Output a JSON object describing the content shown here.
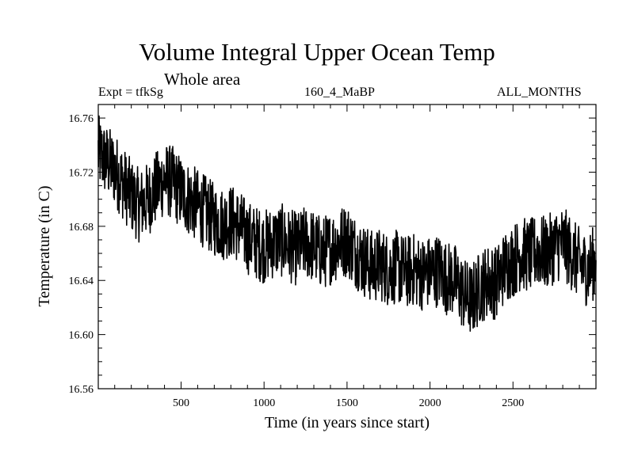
{
  "header": {
    "title": "Volume Integral Upper Ocean Temp",
    "subtitle": "Whole area",
    "expt": "Expt = tfkSg",
    "run": "160_4_MaBP",
    "months": "ALL_MONTHS"
  },
  "chart_data": {
    "type": "line",
    "title": "Volume Integral Upper Ocean Temp",
    "xlabel": "Time (in years since start)",
    "ylabel": "Temperature (in C)",
    "xlim": [
      1,
      3000
    ],
    "ylim": [
      16.56,
      16.77
    ],
    "xticks": [
      500,
      1000,
      1500,
      2000,
      2500
    ],
    "xtick_labels": [
      "500",
      "1000",
      "1500",
      "2000",
      "2500"
    ],
    "yticks": [
      16.56,
      16.6,
      16.64,
      16.68,
      16.72,
      16.76
    ],
    "ytick_labels": [
      "16.56",
      "16.60",
      "16.64",
      "16.68",
      "16.72",
      "16.76"
    ],
    "grid": false,
    "series": [
      {
        "name": "tfkSg",
        "x": [
          0,
          50,
          100,
          150,
          200,
          250,
          300,
          350,
          400,
          450,
          500,
          550,
          600,
          650,
          700,
          750,
          800,
          850,
          900,
          950,
          1000,
          1050,
          1100,
          1150,
          1200,
          1250,
          1300,
          1350,
          1400,
          1450,
          1500,
          1550,
          1600,
          1650,
          1700,
          1750,
          1800,
          1850,
          1900,
          1950,
          2000,
          2050,
          2100,
          2150,
          2200,
          2250,
          2300,
          2350,
          2400,
          2450,
          2500,
          2550,
          2600,
          2650,
          2700,
          2750,
          2800,
          2850,
          2900,
          2950,
          3000
        ],
        "values": [
          16.735,
          16.728,
          16.722,
          16.712,
          16.702,
          16.695,
          16.7,
          16.708,
          16.715,
          16.712,
          16.705,
          16.7,
          16.695,
          16.69,
          16.685,
          16.682,
          16.684,
          16.68,
          16.672,
          16.668,
          16.665,
          16.668,
          16.67,
          16.666,
          16.663,
          16.668,
          16.665,
          16.66,
          16.664,
          16.668,
          16.67,
          16.662,
          16.655,
          16.65,
          16.652,
          16.648,
          16.65,
          16.646,
          16.648,
          16.645,
          16.646,
          16.648,
          16.642,
          16.64,
          16.63,
          16.625,
          16.635,
          16.64,
          16.638,
          16.65,
          16.655,
          16.66,
          16.658,
          16.662,
          16.66,
          16.665,
          16.668,
          16.66,
          16.652,
          16.648,
          16.655
        ]
      }
    ]
  }
}
